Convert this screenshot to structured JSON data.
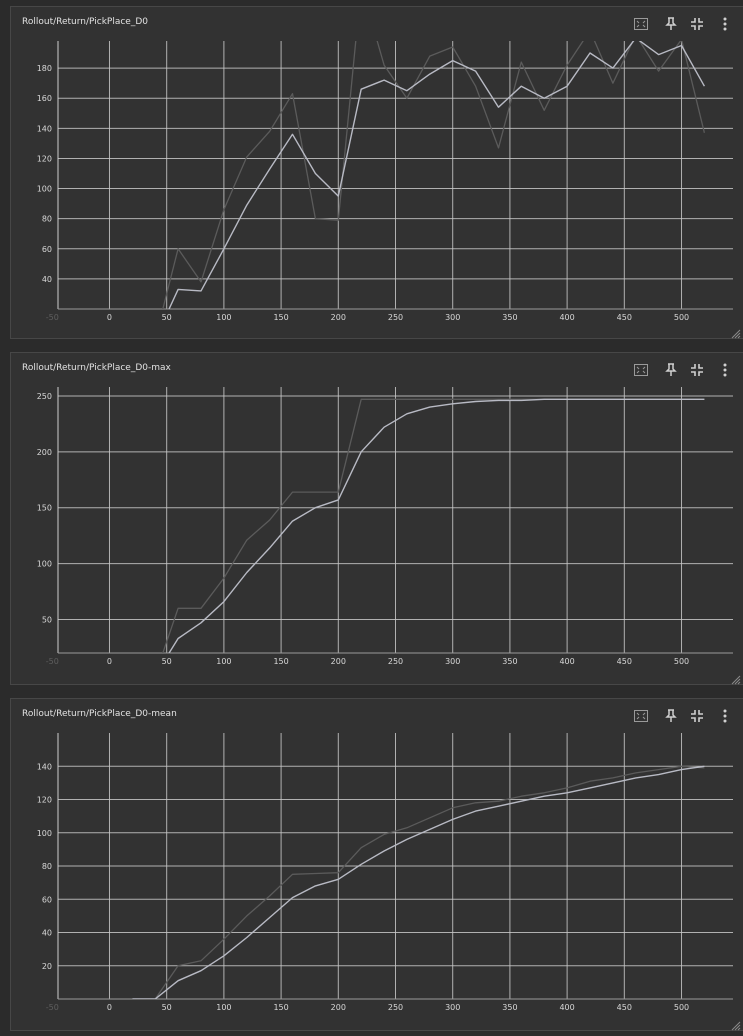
{
  "colors": {
    "raw_line": "#5b5b5b",
    "smooth_line": "#b8bac4",
    "grid": "#c8c8c8",
    "panel_bg": "#323232"
  },
  "icons": {
    "fit": "fit-domain-icon",
    "pin": "pin-icon",
    "collapse": "collapse-icon",
    "more": "more-vertical-icon"
  },
  "chart_data": [
    {
      "type": "line",
      "title": "Rollout/Return/PickPlace_D0",
      "xlabel": "",
      "ylabel": "",
      "xlim": [
        -45,
        545
      ],
      "ylim": [
        20,
        198
      ],
      "x_ticks": [
        -50,
        0,
        50,
        100,
        150,
        200,
        250,
        300,
        350,
        400,
        450,
        500
      ],
      "x_tick_labels": [
        "-50",
        "0",
        "50",
        "100",
        "150",
        "200",
        "250",
        "300",
        "350",
        "400",
        "450",
        "500"
      ],
      "y_ticks": [
        40,
        60,
        80,
        100,
        120,
        140,
        160,
        180
      ],
      "y_tick_labels": [
        "40",
        "60",
        "80",
        "100",
        "120",
        "140",
        "160",
        "180"
      ],
      "grid": true,
      "series": [
        {
          "role": "raw",
          "x": [
            40,
            60,
            80,
            100,
            120,
            140,
            160,
            180,
            200,
            220,
            240,
            260,
            280,
            300,
            320,
            340,
            360,
            380,
            400,
            420,
            440,
            460,
            480,
            500,
            520
          ],
          "y": [
            0,
            60,
            38,
            86,
            121,
            138,
            163,
            80,
            79,
            235,
            182,
            160,
            188,
            194,
            168,
            127,
            184,
            152,
            182,
            205,
            170,
            202,
            178,
            199,
            137
          ]
        },
        {
          "role": "smoothed",
          "x": [
            40,
            60,
            80,
            100,
            120,
            140,
            160,
            180,
            200,
            220,
            240,
            260,
            280,
            300,
            320,
            340,
            360,
            380,
            400,
            420,
            440,
            460,
            480,
            500,
            520
          ],
          "y": [
            0,
            33,
            32,
            60,
            89,
            113,
            136,
            110,
            95,
            166,
            172,
            165,
            176,
            185,
            178,
            154,
            168,
            160,
            168,
            190,
            180,
            200,
            189,
            195,
            168
          ]
        }
      ]
    },
    {
      "type": "line",
      "title": "Rollout/Return/PickPlace_D0-max",
      "xlabel": "",
      "ylabel": "",
      "xlim": [
        -45,
        545
      ],
      "ylim": [
        20,
        258
      ],
      "x_ticks": [
        -50,
        0,
        50,
        100,
        150,
        200,
        250,
        300,
        350,
        400,
        450,
        500
      ],
      "x_tick_labels": [
        "-50",
        "0",
        "50",
        "100",
        "150",
        "200",
        "250",
        "300",
        "350",
        "400",
        "450",
        "500"
      ],
      "y_ticks": [
        50,
        100,
        150,
        200,
        250
      ],
      "y_tick_labels": [
        "50",
        "100",
        "150",
        "200",
        "250"
      ],
      "grid": true,
      "series": [
        {
          "role": "raw",
          "x": [
            40,
            60,
            80,
            100,
            120,
            140,
            160,
            180,
            200,
            220,
            240,
            260,
            280,
            300,
            320,
            340,
            360,
            380,
            400,
            420,
            440,
            460,
            480,
            500,
            520
          ],
          "y": [
            0,
            60,
            60,
            87,
            121,
            139,
            164,
            164,
            164,
            247,
            247,
            247,
            247,
            247,
            247,
            247,
            247,
            247,
            247,
            247,
            247,
            247,
            247,
            247,
            247
          ]
        },
        {
          "role": "smoothed",
          "x": [
            40,
            60,
            80,
            100,
            120,
            140,
            160,
            180,
            200,
            220,
            240,
            260,
            280,
            300,
            320,
            340,
            360,
            380,
            400,
            420,
            440,
            460,
            480,
            500,
            520
          ],
          "y": [
            0,
            33,
            47,
            66,
            92,
            114,
            138,
            150,
            157,
            200,
            222,
            234,
            240,
            243,
            245,
            246,
            246,
            247,
            247,
            247,
            247,
            247,
            247,
            247,
            247
          ]
        }
      ]
    },
    {
      "type": "line",
      "title": "Rollout/Return/PickPlace_D0-mean",
      "xlabel": "",
      "ylabel": "",
      "xlim": [
        -45,
        545
      ],
      "ylim": [
        0,
        160
      ],
      "x_ticks": [
        -50,
        0,
        50,
        100,
        150,
        200,
        250,
        300,
        350,
        400,
        450,
        500
      ],
      "x_tick_labels": [
        "-50",
        "0",
        "50",
        "100",
        "150",
        "200",
        "250",
        "300",
        "350",
        "400",
        "450",
        "500"
      ],
      "y_ticks": [
        20,
        40,
        60,
        80,
        100,
        120,
        140
      ],
      "y_tick_labels": [
        "20",
        "40",
        "60",
        "80",
        "100",
        "120",
        "140"
      ],
      "grid": true,
      "series": [
        {
          "role": "raw",
          "x": [
            20,
            40,
            60,
            80,
            100,
            120,
            140,
            160,
            180,
            200,
            220,
            240,
            260,
            280,
            300,
            320,
            340,
            360,
            380,
            400,
            420,
            440,
            460,
            480,
            500,
            520
          ],
          "y": [
            0,
            0,
            20,
            23,
            36,
            50,
            62,
            75,
            75.5,
            76,
            91,
            99,
            103,
            109,
            115,
            118,
            119,
            122,
            124,
            127,
            131,
            133,
            136,
            138,
            140,
            139
          ]
        },
        {
          "role": "smoothed",
          "x": [
            20,
            40,
            60,
            80,
            100,
            120,
            140,
            160,
            180,
            200,
            220,
            240,
            260,
            280,
            300,
            320,
            340,
            360,
            380,
            400,
            420,
            440,
            460,
            480,
            500,
            520
          ],
          "y": [
            0,
            0,
            11,
            17,
            26,
            37,
            49,
            61,
            68,
            72,
            81,
            89,
            96,
            102,
            108,
            113,
            116,
            119,
            122,
            124,
            127,
            130,
            133,
            135,
            138,
            140
          ]
        }
      ]
    }
  ]
}
